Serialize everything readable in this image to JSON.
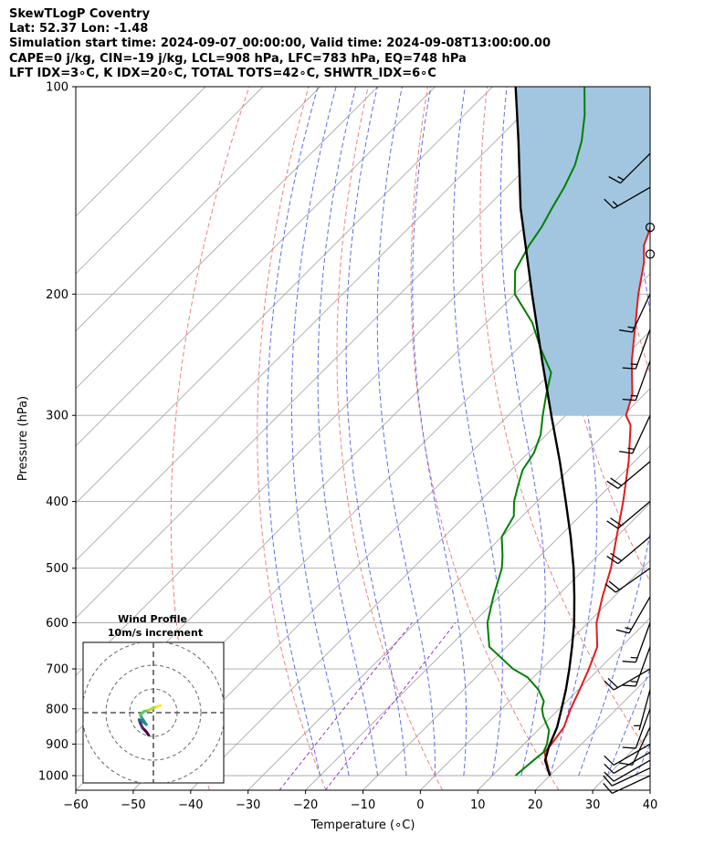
{
  "header": {
    "line1": "SkewTLogP Coventry",
    "line2": "Lat: 52.37   Lon: -1.48",
    "line3": "Simulation start time: 2024-09-07_00:00:00, Valid time: 2024-09-08T13:00:00.00",
    "line4": "CAPE=0 j/kg, CIN=-19 j/kg, LCL=908 hPa, LFC=783 hPa, EQ=748 hPa",
    "line5": "LFT IDX=3∘C, K IDX=20∘C, TOTAL TOTS=42∘C, SHWTR_IDX=6∘C"
  },
  "chart_data": {
    "type": "line",
    "chart_kind": "skew-T log-P",
    "xlabel": "Temperature (∘C)",
    "ylabel": "Pressure (hPa)",
    "xlim": [
      -60,
      40
    ],
    "ylim": [
      1050,
      100
    ],
    "x_ticks": [
      -60,
      -50,
      -40,
      -30,
      -20,
      -10,
      0,
      10,
      20,
      30,
      40
    ],
    "x_tick_labels": [
      "−60",
      "−50",
      "−40",
      "−30",
      "−20",
      "−10",
      "0",
      "10",
      "20",
      "30",
      "40"
    ],
    "y_ticks": [
      1000,
      900,
      800,
      700,
      600,
      500,
      400,
      300,
      200,
      100
    ],
    "y_tick_labels": [
      "1000",
      "900",
      "800",
      "700",
      "600",
      "500",
      "400",
      "300",
      "200",
      "100"
    ],
    "skew": 1,
    "grid": true,
    "colors": {
      "temperature": "#e31a1c",
      "dewpoint": "#008000",
      "parcel": "#000000",
      "cape_fill": "#a2c6df",
      "dry_adiabat": "#f08080",
      "moist_adiabat": "#5c6cf0",
      "mixing_ratio": "#9932cc",
      "isotherm": "#aaaaaa"
    },
    "series": [
      {
        "name": "Temperature",
        "pressure": [
          1000,
          925,
          900,
          850,
          800,
          750,
          700,
          650,
          600,
          550,
          500,
          450,
          400,
          350,
          310,
          300,
          280,
          250,
          220,
          200,
          180,
          170,
          160,
          150,
          140,
          130,
          120,
          110,
          100
        ],
        "values": [
          20,
          15,
          14.8,
          14,
          12,
          10.2,
          8.2,
          5.8,
          1.5,
          -2,
          -5.5,
          -10,
          -15,
          -21,
          -27,
          -29.5,
          -32,
          -38,
          -44,
          -48.5,
          -53,
          -56,
          -58,
          -60,
          -61.5,
          -63,
          -65.5,
          -69,
          -73
        ]
      },
      {
        "name": "Dewpoint",
        "pressure": [
          1000,
          950,
          925,
          900,
          860,
          820,
          800,
          780,
          750,
          720,
          700,
          650,
          600,
          550,
          500,
          480,
          450,
          420,
          400,
          380,
          360,
          340,
          320,
          300,
          280,
          260,
          240,
          220,
          200,
          185,
          170,
          160,
          150,
          140,
          130,
          120,
          110,
          100
        ],
        "values": [
          14,
          14.5,
          14.8,
          14,
          12,
          8.5,
          7,
          6,
          3,
          -1,
          -5,
          -13,
          -17.5,
          -21,
          -24.5,
          -26.5,
          -30,
          -31.5,
          -34,
          -36,
          -38,
          -39,
          -41,
          -44,
          -47,
          -50,
          -56,
          -62,
          -70,
          -74,
          -76,
          -77,
          -78.5,
          -80,
          -82,
          -85,
          -89,
          -94
        ]
      },
      {
        "name": "Parcel profile",
        "pressure": [
          1000,
          950,
          908,
          850,
          800,
          750,
          700,
          650,
          600,
          550,
          500,
          450,
          400,
          350,
          300,
          250,
          200,
          150,
          120,
          100
        ],
        "values": [
          20,
          16.5,
          14.8,
          12.8,
          10.4,
          7.8,
          4.8,
          1.4,
          -2.4,
          -6.9,
          -12,
          -18,
          -25,
          -33,
          -42.5,
          -53.6,
          -67,
          -84,
          -96,
          -106
        ]
      }
    ],
    "cape_region": {
      "from_pressure": 300,
      "to_pressure": 100,
      "between": [
        "Parcel profile",
        "Temperature"
      ]
    },
    "wind_barbs": [
      {
        "pressure": 1000,
        "speed_kt": 10,
        "dir_deg": 245
      },
      {
        "pressure": 975,
        "speed_kt": 10,
        "dir_deg": 245
      },
      {
        "pressure": 950,
        "speed_kt": 10,
        "dir_deg": 240
      },
      {
        "pressure": 925,
        "speed_kt": 10,
        "dir_deg": 240
      },
      {
        "pressure": 900,
        "speed_kt": 10,
        "dir_deg": 240
      },
      {
        "pressure": 850,
        "speed_kt": 10,
        "dir_deg": 205
      },
      {
        "pressure": 800,
        "speed_kt": 10,
        "dir_deg": 200
      },
      {
        "pressure": 750,
        "speed_kt": 5,
        "dir_deg": 195
      },
      {
        "pressure": 700,
        "speed_kt": 20,
        "dir_deg": 240
      },
      {
        "pressure": 650,
        "speed_kt": 15,
        "dir_deg": 200
      },
      {
        "pressure": 600,
        "speed_kt": 15,
        "dir_deg": 200
      },
      {
        "pressure": 550,
        "speed_kt": 15,
        "dir_deg": 210
      },
      {
        "pressure": 500,
        "speed_kt": 20,
        "dir_deg": 235
      },
      {
        "pressure": 450,
        "speed_kt": 20,
        "dir_deg": 230
      },
      {
        "pressure": 400,
        "speed_kt": 20,
        "dir_deg": 230
      },
      {
        "pressure": 350,
        "speed_kt": 20,
        "dir_deg": 230
      },
      {
        "pressure": 300,
        "speed_kt": 15,
        "dir_deg": 205
      },
      {
        "pressure": 250,
        "speed_kt": 15,
        "dir_deg": 200
      },
      {
        "pressure": 225,
        "speed_kt": 15,
        "dir_deg": 200
      },
      {
        "pressure": 200,
        "speed_kt": 15,
        "dir_deg": 205
      },
      {
        "pressure": 175,
        "speed_kt": 0,
        "dir_deg": 0
      },
      {
        "pressure": 160,
        "speed_kt": 0,
        "dir_deg": 0
      },
      {
        "pressure": 140,
        "speed_kt": 15,
        "dir_deg": 240
      },
      {
        "pressure": 125,
        "speed_kt": 15,
        "dir_deg": 225
      }
    ],
    "inset": {
      "title": "Wind Profile",
      "subtitle": "10m/s increment",
      "ring_increment_ms": 10,
      "hodograph_u": [
        -2,
        -3,
        -4.5,
        -5.5,
        -6,
        -5,
        -3.5,
        -3,
        -4,
        -5,
        -5.5,
        -4,
        -2,
        0,
        1.5,
        3
      ],
      "hodograph_v": [
        -9.5,
        -8,
        -6.5,
        -4.5,
        -3,
        -3.5,
        -4.5,
        -5,
        -3.5,
        -2,
        -1,
        0.5,
        1,
        2,
        2.5,
        3
      ]
    }
  }
}
